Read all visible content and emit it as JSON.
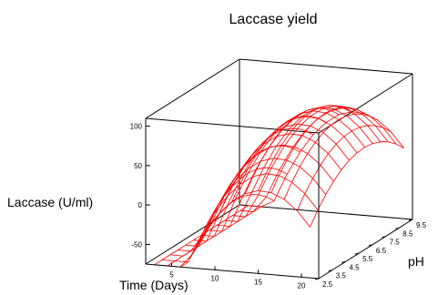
{
  "chart_data": {
    "type": "surface",
    "title": "Laccase yield",
    "zlabel": "Laccase (U/ml)",
    "xlabel": "Time (Days)",
    "ylabel": "pH",
    "x_ticks": [
      "5",
      "10",
      "15",
      "20"
    ],
    "y_ticks": [
      "2.5",
      "3.5",
      "4.5",
      "5.5",
      "6.5",
      "7.5",
      "8.5",
      "9.5"
    ],
    "z_ticks": [
      "100",
      "50",
      "0",
      "-50"
    ],
    "xlim": [
      2,
      22
    ],
    "ylim": [
      2.5,
      9.5
    ],
    "zlim": [
      -75,
      110
    ],
    "x": [
      3,
      4.5,
      6,
      7.5,
      9,
      10.5,
      12,
      13.5,
      15,
      16.5,
      18,
      19.5,
      21
    ],
    "y": [
      2.5,
      3.08,
      3.67,
      4.25,
      4.83,
      5.42,
      6,
      6.58,
      7.17,
      7.75,
      8.33,
      8.92,
      9.5
    ],
    "model": {
      "description_free": true,
      "peak_x": 15.5,
      "peak_y": 6.5,
      "peak_z": 88,
      "curvature_x": 1.35,
      "curvature_y": 3.6
    },
    "grid": false,
    "mesh_color": "#ff0000"
  }
}
